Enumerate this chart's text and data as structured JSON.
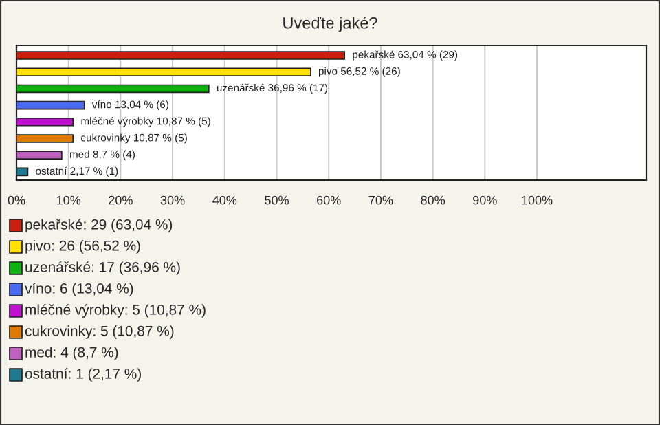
{
  "chart_data": {
    "type": "bar",
    "orientation": "horizontal",
    "title": "Uveďte jaké?",
    "categories": [
      null,
      null,
      null,
      null,
      null,
      null,
      null,
      null
    ],
    "values": [
      63.04,
      56.52,
      36.96,
      13.04,
      10.87,
      10.87,
      8.7,
      2.17
    ],
    "value_labels": [
      "pekařské 63,04 % (29)",
      "pivo 56,52 % (26)",
      "uzenářské 36,96 % (17)",
      "víno 13,04 % (6)",
      "mléčné výrobky 10,87 % (5)",
      "cukrovinky 10,87 % (5)",
      "med 8,7 % (4)",
      "ostatní 2,17 % (1)"
    ],
    "colors": [
      "#c8200c",
      "#ffe000",
      "#10b010",
      "#4a6af0",
      "#c010d0",
      "#e07a00",
      "#c060c0",
      "#1e7890"
    ],
    "xlim": [
      0,
      121
    ],
    "xticks": [
      {
        "value": 0,
        "label": "0%"
      },
      {
        "value": 10,
        "label": "10%"
      },
      {
        "value": 20,
        "label": "20%"
      },
      {
        "value": 30,
        "label": "30%"
      },
      {
        "value": 40,
        "label": "40%"
      },
      {
        "value": 50,
        "label": "50%"
      },
      {
        "value": 60,
        "label": "60%"
      },
      {
        "value": 70,
        "label": "70%"
      },
      {
        "value": 80,
        "label": "80%"
      },
      {
        "value": 90,
        "label": "90%"
      },
      {
        "value": 100,
        "label": "100%"
      }
    ],
    "grid": "x",
    "annotations": [
      "pekařské: 29 (63,04 %)",
      "pivo: 26 (56,52 %)",
      "uzenářské: 17 (36,96 %)",
      "víno: 6 (13,04 %)",
      "mléčné výrobky: 5 (10,87 %)",
      "cukrovinky: 5 (10,87 %)",
      "med: 4 (8,7 %)",
      "ostatní: 1 (2,17 %)"
    ]
  }
}
